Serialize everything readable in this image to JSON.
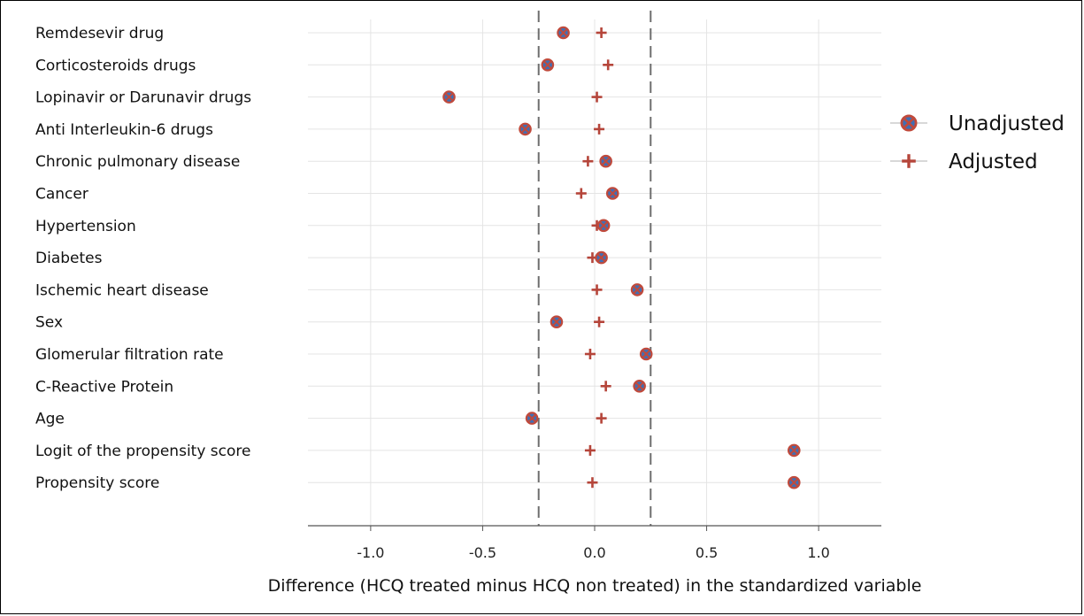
{
  "chart_data": {
    "type": "scatter",
    "title": "",
    "xlabel": "Difference (HCQ treated minus HCQ non treated) in the standardized variable",
    "ylabel": "",
    "xlim": [
      -1.28,
      1.28
    ],
    "xticks": [
      -1.0,
      -0.5,
      0.0,
      0.5,
      1.0
    ],
    "xtick_labels": [
      "-1.0",
      "-0.5",
      "0.0",
      "0.5",
      "1.0"
    ],
    "reference_lines": [
      -0.25,
      0.25
    ],
    "grid": "horizontal and vertical",
    "legend_position": "right",
    "categories": [
      "Remdesevir drug",
      "Corticosteroids drugs",
      "Lopinavir or Darunavir drugs",
      "Anti Interleukin-6 drugs",
      "Chronic pulmonary disease",
      "Cancer",
      "Hypertension",
      "Diabetes",
      "Ischemic heart disease",
      "Sex",
      "Glomerular filtration rate",
      "C-Reactive Protein",
      "Age",
      "Logit of the propensity score",
      "Propensity score"
    ],
    "series": [
      {
        "name": "Unadjusted",
        "marker": "circle-x",
        "color": "#7a4a8c",
        "values": [
          -0.14,
          -0.21,
          -0.65,
          -0.31,
          0.05,
          0.08,
          0.04,
          0.03,
          0.19,
          -0.17,
          0.23,
          0.2,
          -0.28,
          0.89,
          0.89
        ]
      },
      {
        "name": "Adjusted",
        "marker": "plus",
        "color": "#b5453a",
        "values": [
          0.03,
          0.06,
          0.01,
          0.02,
          -0.03,
          -0.06,
          0.01,
          -0.01,
          0.01,
          0.02,
          -0.02,
          0.05,
          0.03,
          -0.02,
          -0.01
        ]
      }
    ]
  }
}
